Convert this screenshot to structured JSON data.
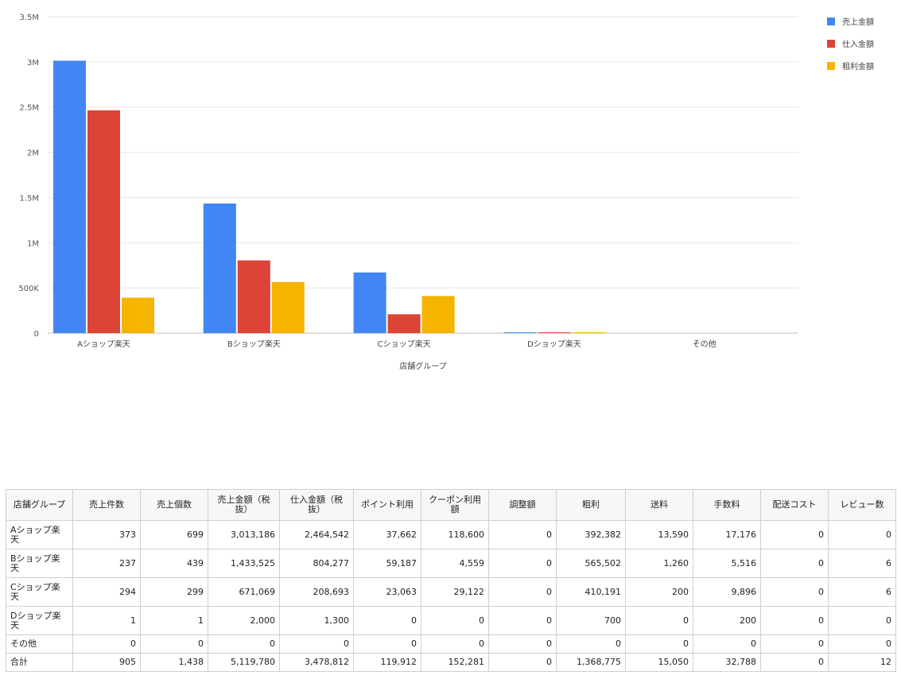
{
  "chart_data": {
    "type": "bar",
    "xlabel": "店舗グループ",
    "ylabel": "",
    "categories": [
      "Aショップ楽天",
      "Bショップ楽天",
      "Cショップ楽天",
      "Dショップ楽天",
      "その他"
    ],
    "series": [
      {
        "name": "売上金額",
        "color": "#4285f4",
        "values": [
          3013186,
          1433525,
          671069,
          2000,
          0
        ]
      },
      {
        "name": "仕入金額",
        "color": "#db4437",
        "values": [
          2464542,
          804277,
          208693,
          1300,
          0
        ]
      },
      {
        "name": "粗利金額",
        "color": "#f4b400",
        "values": [
          392382,
          565502,
          410191,
          700,
          0
        ]
      }
    ],
    "ylim": [
      0,
      3500000
    ],
    "yticks": [
      {
        "value": 0,
        "label": "0"
      },
      {
        "value": 500000,
        "label": "500K"
      },
      {
        "value": 1000000,
        "label": "1M"
      },
      {
        "value": 1500000,
        "label": "1.5M"
      },
      {
        "value": 2000000,
        "label": "2M"
      },
      {
        "value": 2500000,
        "label": "2.5M"
      },
      {
        "value": 3000000,
        "label": "3M"
      },
      {
        "value": 3500000,
        "label": "3.5M"
      }
    ],
    "grid": true,
    "legend_position": "right"
  },
  "table": {
    "headers": [
      "店舗グループ",
      "売上件数",
      "売上個数",
      "売上金額（税抜）",
      "仕入金額（税抜）",
      "ポイント利用",
      "クーポン利用額",
      "調整額",
      "粗利",
      "送料",
      "手数料",
      "配送コスト",
      "レビュー数"
    ],
    "rows": [
      [
        "Aショップ楽天",
        "373",
        "699",
        "3,013,186",
        "2,464,542",
        "37,662",
        "118,600",
        "0",
        "392,382",
        "13,590",
        "17,176",
        "0",
        "0"
      ],
      [
        "Bショップ楽天",
        "237",
        "439",
        "1,433,525",
        "804,277",
        "59,187",
        "4,559",
        "0",
        "565,502",
        "1,260",
        "5,516",
        "0",
        "6"
      ],
      [
        "Cショップ楽天",
        "294",
        "299",
        "671,069",
        "208,693",
        "23,063",
        "29,122",
        "0",
        "410,191",
        "200",
        "9,896",
        "0",
        "6"
      ],
      [
        "Dショップ楽天",
        "1",
        "1",
        "2,000",
        "1,300",
        "0",
        "0",
        "0",
        "700",
        "0",
        "200",
        "0",
        "0"
      ],
      [
        "その他",
        "0",
        "0",
        "0",
        "0",
        "0",
        "0",
        "0",
        "0",
        "0",
        "0",
        "0",
        "0"
      ],
      [
        "合計",
        "905",
        "1,438",
        "5,119,780",
        "3,478,812",
        "119,912",
        "152,281",
        "0",
        "1,368,775",
        "15,050",
        "32,788",
        "0",
        "12"
      ]
    ]
  }
}
